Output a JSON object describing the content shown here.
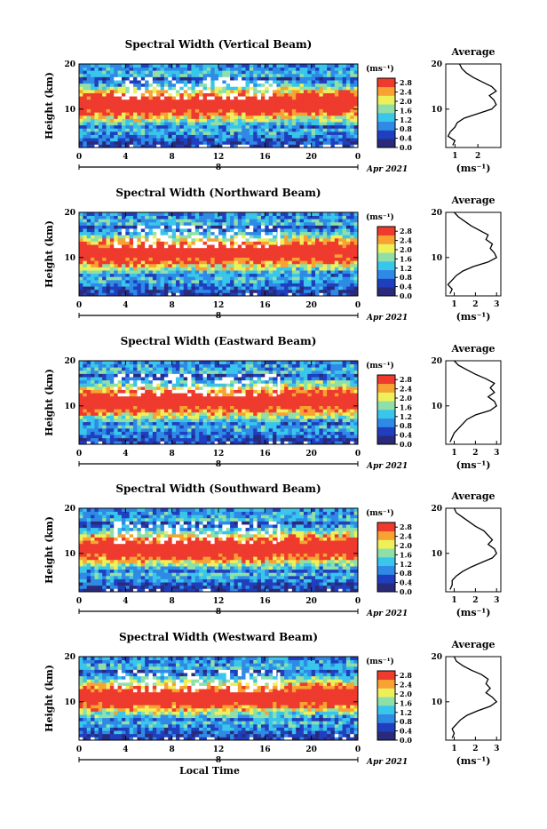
{
  "chart_data": {
    "type": "heatmap",
    "shared": {
      "date_label": "Apr 2021",
      "day_label": "8",
      "xlabel": "Local Time",
      "ylabel": "Height (km)",
      "x_ticks": [
        "0",
        "4",
        "8",
        "12",
        "16",
        "20",
        "0"
      ],
      "y_ticks": [
        "20",
        "10"
      ],
      "xlim": [
        0,
        24
      ],
      "ylim": [
        1.5,
        20
      ],
      "colorbar_unit": "(ms⁻¹)",
      "colorbar_ticks": [
        "2.8",
        "2.4",
        "2.0",
        "1.6",
        "1.2",
        "0.8",
        "0.4",
        "0.0"
      ],
      "clim": [
        0.0,
        3.0
      ],
      "avg_title": "Average",
      "avg_unit": "(ms⁻¹)",
      "colors": [
        "#2a2a7a",
        "#1f3fbf",
        "#2f8ae6",
        "#39c6ea",
        "#8fe0a8",
        "#eef05a",
        "#f7a232",
        "#ee3b2e"
      ]
    },
    "panels": [
      {
        "title": "Spectral Width (Vertical Beam)",
        "avg_xticks": [
          "1",
          "2"
        ],
        "avg_xlim": [
          0.6,
          3.0
        ],
        "average_profile": [
          [
            0.9,
            2
          ],
          [
            1.0,
            3
          ],
          [
            0.7,
            4
          ],
          [
            0.8,
            5
          ],
          [
            1.0,
            6
          ],
          [
            1.1,
            7
          ],
          [
            1.4,
            8
          ],
          [
            2.0,
            9
          ],
          [
            2.6,
            10
          ],
          [
            2.8,
            11
          ],
          [
            2.7,
            12
          ],
          [
            2.5,
            13
          ],
          [
            2.8,
            14
          ],
          [
            2.6,
            15
          ],
          [
            2.2,
            16
          ],
          [
            1.8,
            17
          ],
          [
            1.5,
            18
          ],
          [
            1.3,
            19
          ],
          [
            1.2,
            20
          ]
        ]
      },
      {
        "title": "Spectral Width (Northward Beam)",
        "avg_xticks": [
          "1",
          "2",
          "3"
        ],
        "avg_xlim": [
          0.6,
          3.2
        ],
        "average_profile": [
          [
            0.8,
            2
          ],
          [
            0.9,
            3
          ],
          [
            0.7,
            4
          ],
          [
            0.9,
            5
          ],
          [
            1.1,
            6
          ],
          [
            1.4,
            7
          ],
          [
            1.9,
            8
          ],
          [
            2.6,
            9
          ],
          [
            3.0,
            10
          ],
          [
            2.9,
            11
          ],
          [
            2.7,
            12
          ],
          [
            2.8,
            13
          ],
          [
            2.5,
            14
          ],
          [
            2.6,
            15
          ],
          [
            2.2,
            16
          ],
          [
            1.8,
            17
          ],
          [
            1.5,
            18
          ],
          [
            1.2,
            19
          ],
          [
            1.0,
            20
          ]
        ]
      },
      {
        "title": "Spectral Width (Eastward Beam)",
        "avg_xticks": [
          "1",
          "2",
          "3"
        ],
        "avg_xlim": [
          0.6,
          3.2
        ],
        "average_profile": [
          [
            0.8,
            2
          ],
          [
            0.9,
            3
          ],
          [
            1.0,
            4
          ],
          [
            1.2,
            5
          ],
          [
            1.4,
            6
          ],
          [
            1.6,
            7
          ],
          [
            2.0,
            8
          ],
          [
            2.7,
            9
          ],
          [
            3.0,
            10
          ],
          [
            2.9,
            11
          ],
          [
            2.6,
            12
          ],
          [
            2.9,
            13
          ],
          [
            2.7,
            14
          ],
          [
            2.9,
            15
          ],
          [
            2.5,
            16
          ],
          [
            2.0,
            17
          ],
          [
            1.6,
            18
          ],
          [
            1.2,
            19
          ],
          [
            1.0,
            20
          ]
        ]
      },
      {
        "title": "Spectral Width (Southward Beam)",
        "avg_xticks": [
          "1",
          "2",
          "3"
        ],
        "avg_xlim": [
          0.6,
          3.2
        ],
        "average_profile": [
          [
            0.8,
            2
          ],
          [
            0.9,
            3
          ],
          [
            0.9,
            4
          ],
          [
            1.1,
            5
          ],
          [
            1.4,
            6
          ],
          [
            1.8,
            7
          ],
          [
            2.3,
            8
          ],
          [
            2.8,
            9
          ],
          [
            3.0,
            10
          ],
          [
            2.9,
            11
          ],
          [
            2.6,
            12
          ],
          [
            2.8,
            13
          ],
          [
            2.6,
            14
          ],
          [
            2.4,
            15
          ],
          [
            2.0,
            16
          ],
          [
            1.7,
            17
          ],
          [
            1.4,
            18
          ],
          [
            1.1,
            19
          ],
          [
            1.0,
            20
          ]
        ]
      },
      {
        "title": "Spectral Width (Westward Beam)",
        "avg_xticks": [
          "1",
          "2",
          "3"
        ],
        "avg_xlim": [
          0.6,
          3.2
        ],
        "average_profile": [
          [
            0.9,
            2
          ],
          [
            1.0,
            3
          ],
          [
            0.9,
            4
          ],
          [
            1.1,
            5
          ],
          [
            1.3,
            6
          ],
          [
            1.6,
            7
          ],
          [
            2.1,
            8
          ],
          [
            2.7,
            9
          ],
          [
            3.0,
            10
          ],
          [
            2.8,
            11
          ],
          [
            2.5,
            12
          ],
          [
            2.7,
            13
          ],
          [
            2.5,
            14
          ],
          [
            2.6,
            15
          ],
          [
            2.3,
            16
          ],
          [
            1.8,
            17
          ],
          [
            1.4,
            18
          ],
          [
            1.1,
            19
          ],
          [
            1.0,
            20
          ]
        ]
      }
    ]
  }
}
